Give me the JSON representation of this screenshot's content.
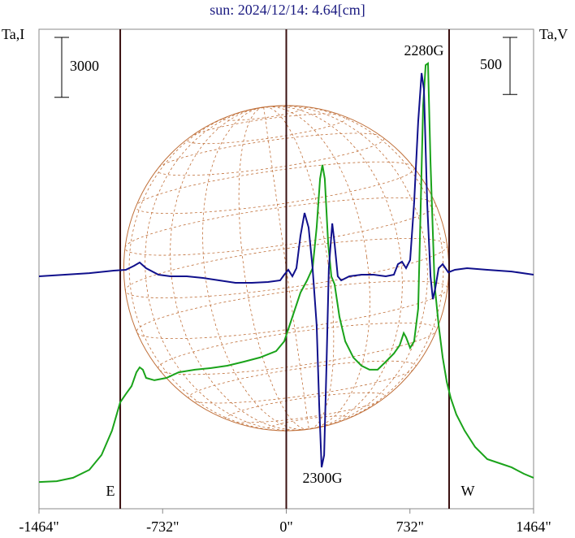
{
  "chart_data": {
    "type": "line",
    "title": "sun: 2024/12/14: 4.64[cm]",
    "xlim": [
      -1464,
      1464
    ],
    "xticks": [
      {
        "value": -1464,
        "label": "-1464\""
      },
      {
        "value": -732,
        "label": "-732\""
      },
      {
        "value": 0,
        "label": "0\""
      },
      {
        "value": 732,
        "label": "732\""
      },
      {
        "value": 1464,
        "label": "1464\""
      }
    ],
    "ylim": [
      0,
      24000
    ],
    "y2lim": [
      -2050,
      2150
    ],
    "scale_bars": [
      3000,
      500
    ],
    "limb_lines": [
      -983,
      0,
      964
    ],
    "solar_radius": 962,
    "annotations": [
      "2280G",
      "2300G",
      "E",
      "W"
    ],
    "series": [
      {
        "name": "Ta,I",
        "color": "#1aa31a",
        "x": [
          -1464,
          -1359,
          -1262,
          -1166,
          -1094,
          -1032,
          -983,
          -950,
          -916,
          -887,
          -868,
          -849,
          -830,
          -781,
          -709,
          -637,
          -541,
          -445,
          -349,
          -252,
          -156,
          -60,
          -12,
          36,
          84,
          123,
          156,
          180,
          200,
          214,
          228,
          248,
          267,
          286,
          315,
          349,
          397,
          445,
          493,
          541,
          589,
          637,
          671,
          695,
          709,
          733,
          757,
          781,
          796,
          810,
          825,
          839,
          854,
          878,
          902,
          926,
          950,
          974,
          1007,
          1056,
          1118,
          1190,
          1262,
          1334,
          1407,
          1464
        ],
        "values": [
          1340,
          1380,
          1550,
          1950,
          2690,
          3910,
          5330,
          5740,
          6140,
          6830,
          7080,
          6960,
          6550,
          6430,
          6550,
          6830,
          6960,
          7040,
          7160,
          7360,
          7570,
          7890,
          8380,
          9600,
          10820,
          11430,
          12040,
          14080,
          16520,
          17210,
          16520,
          13260,
          11630,
          11230,
          9600,
          8380,
          7570,
          7160,
          6960,
          6960,
          7360,
          7770,
          8180,
          8790,
          8580,
          8050,
          8380,
          10010,
          15300,
          20180,
          22210,
          22290,
          17330,
          11230,
          9190,
          7570,
          6350,
          5530,
          4720,
          3910,
          3090,
          2480,
          2280,
          2070,
          1750,
          1550
        ]
      },
      {
        "name": "Ta,V",
        "color": "#10108c",
        "axis": "y2",
        "x": [
          -1464,
          -1310,
          -1166,
          -1022,
          -950,
          -902,
          -868,
          -830,
          -757,
          -685,
          -589,
          -493,
          -397,
          -301,
          -204,
          -108,
          -36,
          -12,
          12,
          36,
          60,
          84,
          108,
          132,
          156,
          180,
          195,
          209,
          224,
          238,
          252,
          272,
          286,
          305,
          325,
          373,
          445,
          517,
          589,
          637,
          661,
          685,
          709,
          733,
          757,
          781,
          801,
          815,
          834,
          854,
          868,
          882,
          902,
          926,
          959,
          998,
          1070,
          1190,
          1334,
          1464
        ],
        "values": [
          -14,
          0,
          14,
          36,
          43,
          78,
          107,
          57,
          0,
          -14,
          -14,
          -28,
          -50,
          -71,
          -71,
          -64,
          -50,
          0,
          43,
          -14,
          57,
          342,
          541,
          413,
          57,
          -441,
          -1153,
          -1687,
          -1581,
          -797,
          57,
          449,
          271,
          -14,
          -50,
          -14,
          0,
          0,
          -14,
          0,
          93,
          114,
          57,
          128,
          627,
          1339,
          1766,
          1623,
          627,
          -14,
          -214,
          -121,
          57,
          93,
          21,
          43,
          57,
          43,
          28,
          0
        ]
      }
    ]
  }
}
